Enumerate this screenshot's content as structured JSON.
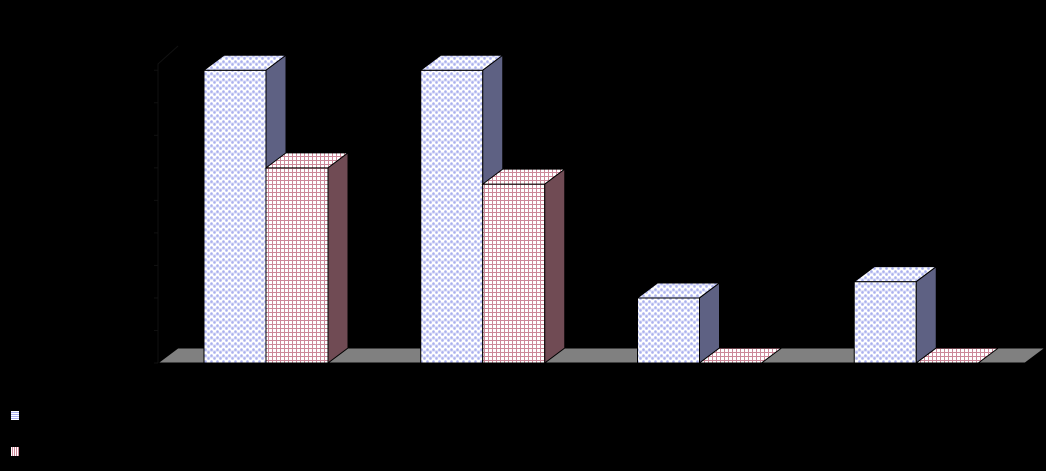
{
  "chart_data": {
    "type": "bar",
    "three_d": true,
    "categories": [
      "",
      "",
      "",
      ""
    ],
    "series": [
      {
        "values": [
          9,
          9,
          2,
          2.5
        ],
        "color": "#aab0ee",
        "pattern": "dots"
      },
      {
        "values": [
          6,
          5.5,
          0,
          0
        ],
        "color": "#cc8899",
        "pattern": "grid"
      }
    ],
    "ylim": [
      0,
      9.5
    ],
    "y_ticks": [
      0,
      1,
      2,
      3,
      4,
      5,
      6,
      7,
      8,
      9
    ],
    "title": "",
    "xlabel": "",
    "ylabel": "",
    "grid": false,
    "legend_position": "bottom-left",
    "colors": {
      "background": "#000000",
      "floor": "#808080",
      "outline": "#000000"
    }
  },
  "legend": {
    "items": [
      {
        "label": "",
        "color": "#aab0ee"
      },
      {
        "label": "",
        "color": "#cc8899"
      }
    ]
  }
}
